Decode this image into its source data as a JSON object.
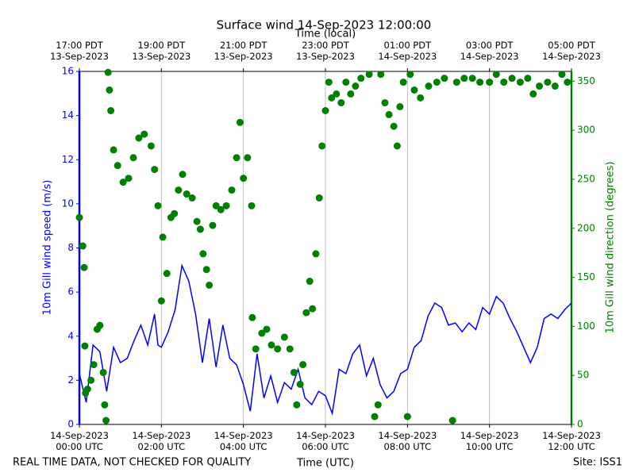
{
  "chart_data": {
    "type": "line",
    "title": "Surface wind 14-Sep-2023 12:00:00",
    "xlabel": "Time (UTC)",
    "top_xlabel": "Time (local)",
    "ylabel": "10m Gill wind speed (m/s)",
    "y2label": "10m Gill wind direction (degrees)",
    "footer_left": "REAL TIME DATA, NOT CHECKED FOR QUALITY",
    "footer_right": "Site: ISS1",
    "grid": "x",
    "xlim": [
      "2023-09-14T00:00",
      "2023-09-14T12:00"
    ],
    "xticks": [
      {
        "value": "2023-09-14T00:00",
        "label": "14-Sep-2023\n00:00 UTC"
      },
      {
        "value": "2023-09-14T02:00",
        "label": "14-Sep-2023\n02:00 UTC"
      },
      {
        "value": "2023-09-14T04:00",
        "label": "14-Sep-2023\n04:00 UTC"
      },
      {
        "value": "2023-09-14T06:00",
        "label": "14-Sep-2023\n06:00 UTC"
      },
      {
        "value": "2023-09-14T08:00",
        "label": "14-Sep-2023\n08:00 UTC"
      },
      {
        "value": "2023-09-14T10:00",
        "label": "14-Sep-2023\n10:00 UTC"
      },
      {
        "value": "2023-09-14T12:00",
        "label": "14-Sep-2023\n12:00 UTC"
      }
    ],
    "top_xticks": [
      {
        "value": "2023-09-14T00:00",
        "label": "17:00 PDT\n13-Sep-2023"
      },
      {
        "value": "2023-09-14T02:00",
        "label": "19:00 PDT\n13-Sep-2023"
      },
      {
        "value": "2023-09-14T04:00",
        "label": "21:00 PDT\n13-Sep-2023"
      },
      {
        "value": "2023-09-14T06:00",
        "label": "23:00 PDT\n13-Sep-2023"
      },
      {
        "value": "2023-09-14T08:00",
        "label": "01:00 PDT\n14-Sep-2023"
      },
      {
        "value": "2023-09-14T10:00",
        "label": "03:00 PDT\n14-Sep-2023"
      },
      {
        "value": "2023-09-14T12:00",
        "label": "05:00 PDT\n14-Sep-2023"
      }
    ],
    "ylim": [
      0,
      16
    ],
    "yticks": [
      0,
      2,
      4,
      6,
      8,
      10,
      12,
      14,
      16
    ],
    "y2lim": [
      0,
      360
    ],
    "y2ticks": [
      0,
      50,
      100,
      150,
      200,
      250,
      300,
      350
    ],
    "series": [
      {
        "name": "10m Gill wind speed",
        "type": "line",
        "color": "#0000ff",
        "x": [
          "2023-09-14T00:00",
          "2023-09-14T00:10",
          "2023-09-14T00:20",
          "2023-09-14T00:30",
          "2023-09-14T00:40",
          "2023-09-14T00:50",
          "2023-09-14T01:00",
          "2023-09-14T01:10",
          "2023-09-14T01:20",
          "2023-09-14T01:30",
          "2023-09-14T01:40",
          "2023-09-14T01:50",
          "2023-09-14T01:55",
          "2023-09-14T02:00",
          "2023-09-14T02:10",
          "2023-09-14T02:20",
          "2023-09-14T02:30",
          "2023-09-14T02:40",
          "2023-09-14T02:50",
          "2023-09-14T03:00",
          "2023-09-14T03:10",
          "2023-09-14T03:20",
          "2023-09-14T03:30",
          "2023-09-14T03:40",
          "2023-09-14T03:50",
          "2023-09-14T04:00",
          "2023-09-14T04:10",
          "2023-09-14T04:20",
          "2023-09-14T04:30",
          "2023-09-14T04:40",
          "2023-09-14T04:50",
          "2023-09-14T05:00",
          "2023-09-14T05:10",
          "2023-09-14T05:20",
          "2023-09-14T05:30",
          "2023-09-14T05:40",
          "2023-09-14T05:50",
          "2023-09-14T06:00",
          "2023-09-14T06:10",
          "2023-09-14T06:20",
          "2023-09-14T06:30",
          "2023-09-14T06:40",
          "2023-09-14T06:50",
          "2023-09-14T07:00",
          "2023-09-14T07:10",
          "2023-09-14T07:20",
          "2023-09-14T07:30",
          "2023-09-14T07:40",
          "2023-09-14T07:50",
          "2023-09-14T08:00",
          "2023-09-14T08:10",
          "2023-09-14T08:20",
          "2023-09-14T08:30",
          "2023-09-14T08:40",
          "2023-09-14T08:50",
          "2023-09-14T09:00",
          "2023-09-14T09:10",
          "2023-09-14T09:20",
          "2023-09-14T09:30",
          "2023-09-14T09:40",
          "2023-09-14T09:50",
          "2023-09-14T10:00",
          "2023-09-14T10:10",
          "2023-09-14T10:20",
          "2023-09-14T10:30",
          "2023-09-14T10:40",
          "2023-09-14T10:50",
          "2023-09-14T11:00",
          "2023-09-14T11:10",
          "2023-09-14T11:20",
          "2023-09-14T11:30",
          "2023-09-14T11:40",
          "2023-09-14T11:50",
          "2023-09-14T12:00"
        ],
        "values": [
          2.3,
          1.0,
          3.6,
          3.3,
          1.5,
          3.5,
          2.8,
          3.0,
          3.8,
          4.5,
          3.6,
          5.0,
          3.6,
          3.5,
          4.2,
          5.2,
          7.2,
          6.5,
          5.0,
          2.8,
          4.8,
          2.6,
          4.5,
          3.0,
          2.7,
          1.8,
          0.6,
          3.2,
          1.2,
          2.2,
          1.0,
          1.9,
          1.6,
          2.5,
          1.2,
          0.9,
          1.5,
          1.3,
          0.5,
          2.5,
          2.3,
          3.2,
          3.6,
          2.2,
          3.0,
          1.8,
          1.2,
          1.5,
          2.3,
          2.5,
          3.5,
          3.8,
          4.9,
          5.5,
          5.3,
          4.5,
          4.6,
          4.2,
          4.6,
          4.3,
          5.3,
          5.0,
          5.8,
          5.5,
          4.8,
          4.2,
          3.5,
          2.8,
          3.5,
          4.8,
          5.0,
          4.8,
          5.2,
          5.5
        ]
      },
      {
        "name": "10m Gill wind direction",
        "type": "scatter",
        "axis": "y2",
        "color": "#008000",
        "x": [
          "2023-09-14T00:00",
          "2023-09-14T00:05",
          "2023-09-14T00:07",
          "2023-09-14T00:08",
          "2023-09-14T00:09",
          "2023-09-14T00:12",
          "2023-09-14T00:17",
          "2023-09-14T00:21",
          "2023-09-14T00:26",
          "2023-09-14T00:30",
          "2023-09-14T00:35",
          "2023-09-14T00:37",
          "2023-09-14T00:39",
          "2023-09-14T00:42",
          "2023-09-14T00:44",
          "2023-09-14T00:46",
          "2023-09-14T00:50",
          "2023-09-14T00:56",
          "2023-09-14T01:04",
          "2023-09-14T01:12",
          "2023-09-14T01:19",
          "2023-09-14T01:27",
          "2023-09-14T01:35",
          "2023-09-14T01:45",
          "2023-09-14T01:50",
          "2023-09-14T01:55",
          "2023-09-14T02:00",
          "2023-09-14T02:02",
          "2023-09-14T02:08",
          "2023-09-14T02:14",
          "2023-09-14T02:19",
          "2023-09-14T02:25",
          "2023-09-14T02:31",
          "2023-09-14T02:37",
          "2023-09-14T02:45",
          "2023-09-14T02:52",
          "2023-09-14T02:57",
          "2023-09-14T03:01",
          "2023-09-14T03:06",
          "2023-09-14T03:10",
          "2023-09-14T03:15",
          "2023-09-14T03:20",
          "2023-09-14T03:27",
          "2023-09-14T03:35",
          "2023-09-14T03:43",
          "2023-09-14T03:50",
          "2023-09-14T03:55",
          "2023-09-14T04:00",
          "2023-09-14T04:06",
          "2023-09-14T04:12",
          "2023-09-14T04:13",
          "2023-09-14T04:18",
          "2023-09-14T04:27",
          "2023-09-14T04:34",
          "2023-09-14T04:41",
          "2023-09-14T04:50",
          "2023-09-14T05:00",
          "2023-09-14T05:08",
          "2023-09-14T05:14",
          "2023-09-14T05:18",
          "2023-09-14T05:23",
          "2023-09-14T05:27",
          "2023-09-14T05:32",
          "2023-09-14T05:37",
          "2023-09-14T05:41",
          "2023-09-14T05:46",
          "2023-09-14T05:51",
          "2023-09-14T05:55",
          "2023-09-14T06:00",
          "2023-09-14T06:05",
          "2023-09-14T06:09",
          "2023-09-14T06:16",
          "2023-09-14T06:23",
          "2023-09-14T06:30",
          "2023-09-14T06:37",
          "2023-09-14T06:44",
          "2023-09-14T06:52",
          "2023-09-14T07:04",
          "2023-09-14T07:12",
          "2023-09-14T07:17",
          "2023-09-14T07:21",
          "2023-09-14T07:27",
          "2023-09-14T07:33",
          "2023-09-14T07:40",
          "2023-09-14T07:45",
          "2023-09-14T07:49",
          "2023-09-14T07:54",
          "2023-09-14T08:00",
          "2023-09-14T08:04",
          "2023-09-14T08:10",
          "2023-09-14T08:19",
          "2023-09-14T08:31",
          "2023-09-14T08:43",
          "2023-09-14T08:54",
          "2023-09-14T09:06",
          "2023-09-14T09:12",
          "2023-09-14T09:23",
          "2023-09-14T09:35",
          "2023-09-14T09:46",
          "2023-09-14T10:00",
          "2023-09-14T10:10",
          "2023-09-14T10:21",
          "2023-09-14T10:33",
          "2023-09-14T10:45",
          "2023-09-14T10:56",
          "2023-09-14T11:04",
          "2023-09-14T11:13",
          "2023-09-14T11:25",
          "2023-09-14T11:36",
          "2023-09-14T11:46",
          "2023-09-14T11:54"
        ],
        "values": [
          211,
          182,
          160,
          80,
          32,
          36,
          45,
          61,
          97,
          101,
          53,
          20,
          4,
          359,
          341,
          320,
          280,
          264,
          247,
          251,
          272,
          292,
          296,
          284,
          260,
          223,
          126,
          191,
          154,
          211,
          215,
          239,
          255,
          235,
          231,
          207,
          199,
          174,
          158,
          142,
          203,
          223,
          219,
          223,
          239,
          272,
          308,
          251,
          272,
          223,
          109,
          77,
          93,
          97,
          81,
          77,
          89,
          77,
          53,
          20,
          41,
          61,
          114,
          146,
          118,
          174,
          231,
          284,
          320,
          349,
          333,
          337,
          328,
          349,
          337,
          345,
          353,
          357,
          8,
          20,
          357,
          328,
          316,
          304,
          284,
          324,
          349,
          8,
          357,
          341,
          333,
          345,
          349,
          353,
          4,
          349,
          353,
          353,
          349,
          349,
          357,
          349,
          353,
          349,
          353,
          337,
          345,
          349,
          345,
          357,
          349
        ]
      }
    ]
  }
}
